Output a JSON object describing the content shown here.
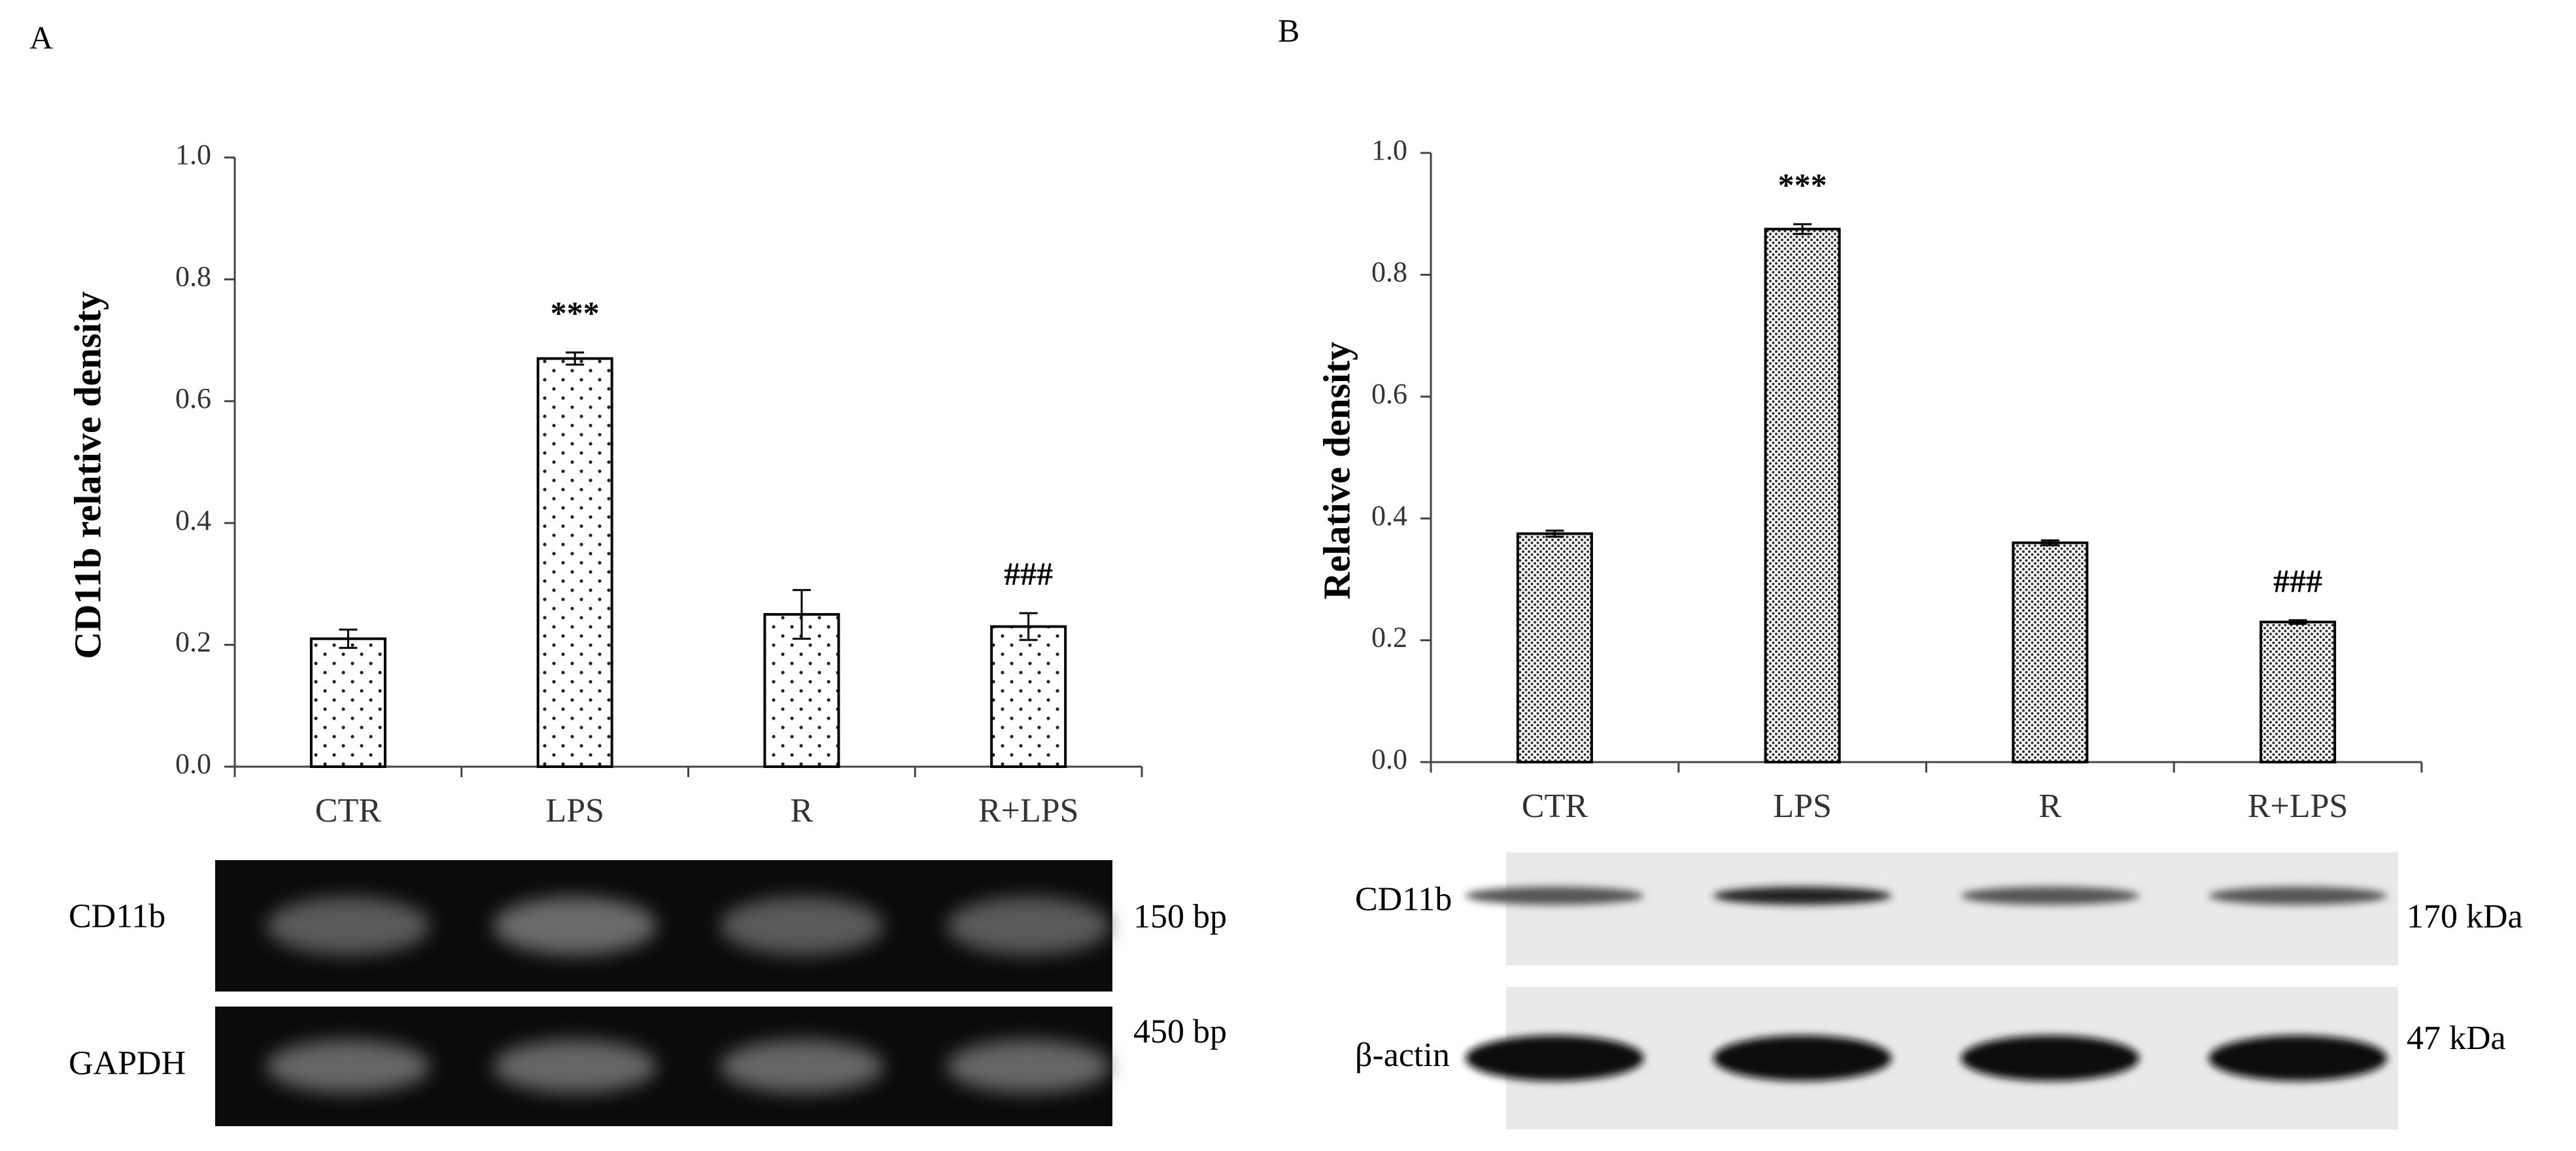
{
  "chart_data": [
    {
      "type": "bar",
      "panel": "A",
      "y_label": "CD11b relative density",
      "categories": [
        "CTR",
        "LPS",
        "R",
        "R+LPS"
      ],
      "values": [
        0.21,
        0.67,
        0.25,
        0.23
      ],
      "errors": [
        0.015,
        0.01,
        0.04,
        0.022
      ],
      "annotations": [
        null,
        "***",
        null,
        "###"
      ],
      "color": "#ffffff",
      "edge_color": "#000000",
      "pattern": "sparse-dots",
      "ylim": [
        0,
        1
      ],
      "yticks": [
        {
          "value": 0,
          "label": "0.0"
        },
        0.2,
        0.4,
        0.6,
        0.8,
        {
          "value": 1,
          "label": "1.0"
        }
      ],
      "grid": false,
      "blot": {
        "style": "dark",
        "rows": [
          {
            "label": "CD11b",
            "size": "150 bp"
          },
          {
            "label": "GAPDH",
            "size": "450 bp"
          }
        ]
      }
    },
    {
      "type": "bar",
      "panel": "B",
      "y_label": "Relative density",
      "categories": [
        "CTR",
        "LPS",
        "R",
        "R+LPS"
      ],
      "values": [
        0.375,
        0.875,
        0.36,
        0.23
      ],
      "errors": [
        0.005,
        0.008,
        0.004,
        0.003
      ],
      "annotations": [
        null,
        "***",
        null,
        "###"
      ],
      "color": "#ffffff",
      "edge_color": "#000000",
      "pattern": "dense-dots",
      "ylim": [
        0,
        1
      ],
      "yticks": [
        {
          "value": 0,
          "label": "0.0"
        },
        0.2,
        0.4,
        0.6,
        0.8,
        {
          "value": 1,
          "label": "1.0"
        }
      ],
      "grid": false,
      "blot": {
        "style": "light",
        "rows": [
          {
            "label": "CD11b",
            "size": "170 kDa"
          },
          {
            "label": "β-actin",
            "size": "47  kDa"
          }
        ]
      }
    }
  ]
}
